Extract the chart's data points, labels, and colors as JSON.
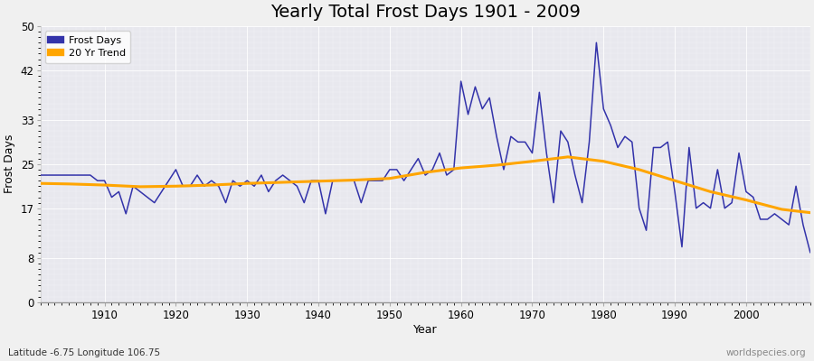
{
  "title": "Yearly Total Frost Days 1901 - 2009",
  "xlabel": "Year",
  "ylabel": "Frost Days",
  "subtitle": "Latitude -6.75 Longitude 106.75",
  "watermark": "worldspecies.org",
  "frost_days": {
    "years": [
      1901,
      1902,
      1903,
      1904,
      1905,
      1906,
      1907,
      1908,
      1909,
      1910,
      1911,
      1912,
      1913,
      1914,
      1915,
      1916,
      1917,
      1918,
      1919,
      1920,
      1921,
      1922,
      1923,
      1924,
      1925,
      1926,
      1927,
      1928,
      1929,
      1930,
      1931,
      1932,
      1933,
      1934,
      1935,
      1936,
      1937,
      1938,
      1939,
      1940,
      1941,
      1942,
      1943,
      1944,
      1945,
      1946,
      1947,
      1948,
      1949,
      1950,
      1951,
      1952,
      1953,
      1954,
      1955,
      1956,
      1957,
      1958,
      1959,
      1960,
      1961,
      1962,
      1963,
      1964,
      1965,
      1966,
      1967,
      1968,
      1969,
      1970,
      1971,
      1972,
      1973,
      1974,
      1975,
      1976,
      1977,
      1978,
      1979,
      1980,
      1981,
      1982,
      1983,
      1984,
      1985,
      1986,
      1987,
      1988,
      1989,
      1990,
      1991,
      1992,
      1993,
      1994,
      1995,
      1996,
      1997,
      1998,
      1999,
      2000,
      2001,
      2002,
      2003,
      2004,
      2005,
      2006,
      2007,
      2008,
      2009
    ],
    "values": [
      23,
      23,
      23,
      23,
      23,
      23,
      23,
      23,
      22,
      22,
      19,
      20,
      16,
      21,
      20,
      19,
      18,
      20,
      22,
      24,
      21,
      21,
      23,
      21,
      22,
      21,
      18,
      22,
      21,
      22,
      21,
      23,
      20,
      22,
      23,
      22,
      21,
      18,
      22,
      22,
      16,
      22,
      22,
      22,
      22,
      18,
      22,
      22,
      22,
      24,
      24,
      22,
      24,
      26,
      23,
      24,
      27,
      23,
      24,
      40,
      34,
      39,
      35,
      37,
      30,
      24,
      30,
      29,
      29,
      27,
      38,
      27,
      18,
      31,
      29,
      23,
      18,
      29,
      47,
      35,
      32,
      28,
      30,
      29,
      17,
      13,
      28,
      28,
      29,
      20,
      10,
      28,
      17,
      18,
      17,
      24,
      17,
      18,
      27,
      20,
      19,
      15,
      15,
      16,
      15,
      14,
      21,
      14,
      9
    ]
  },
  "trend": {
    "years": [
      1901,
      1905,
      1910,
      1915,
      1920,
      1925,
      1930,
      1935,
      1940,
      1945,
      1950,
      1955,
      1960,
      1965,
      1970,
      1975,
      1980,
      1985,
      1990,
      1995,
      2000,
      2005,
      2009
    ],
    "values": [
      21.5,
      21.4,
      21.2,
      20.9,
      21.0,
      21.2,
      21.5,
      21.7,
      21.9,
      22.1,
      22.4,
      23.5,
      24.3,
      24.8,
      25.5,
      26.3,
      25.5,
      24.0,
      22.0,
      20.0,
      18.5,
      16.8,
      16.2
    ]
  },
  "frost_color": "#3333aa",
  "trend_color": "#FFA500",
  "background_color": "#f0f0f0",
  "plot_bg_color": "#e8e8ee",
  "ylim": [
    0,
    50
  ],
  "yticks": [
    0,
    8,
    17,
    25,
    33,
    42,
    50
  ],
  "xlim": [
    1901,
    2009
  ],
  "xticks": [
    1910,
    1920,
    1930,
    1940,
    1950,
    1960,
    1970,
    1980,
    1990,
    2000
  ],
  "title_fontsize": 14,
  "label_fontsize": 9,
  "tick_fontsize": 8.5
}
